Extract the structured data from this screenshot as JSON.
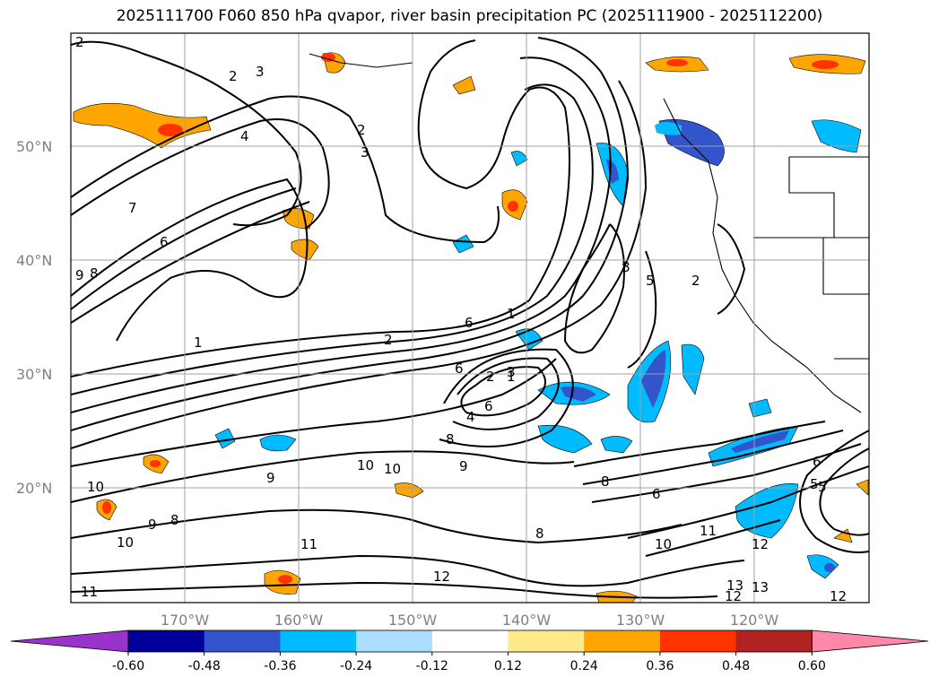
{
  "title": "2025111700 F060 850 hPa qvapor, river basin precipitation PC (2025111900 - 2025112200)",
  "map": {
    "lat_labels": [
      "50°N",
      "40°N",
      "30°N",
      "20°N"
    ],
    "lon_labels": [
      "170°W",
      "160°W",
      "150°W",
      "140°W",
      "130°W",
      "120°W"
    ],
    "contour_labels": [
      "2",
      "3",
      "2",
      "4",
      "3",
      "2",
      "7",
      "6",
      "9",
      "8",
      "1",
      "2",
      "6",
      "8",
      "6",
      "5",
      "2",
      "1",
      "1",
      "2",
      "6",
      "4",
      "8",
      "9",
      "8",
      "6",
      "5",
      "9",
      "10",
      "11",
      "10",
      "9",
      "8",
      "10",
      "11",
      "12",
      "10",
      "11",
      "12",
      "12",
      "13",
      "12",
      "13",
      "6",
      "5",
      "3",
      "8",
      "10"
    ],
    "grid_color": "#a0a0a0"
  },
  "colorbar": {
    "tick_labels": [
      "-0.60",
      "-0.48",
      "-0.36",
      "-0.24",
      "-0.12",
      "0.12",
      "0.24",
      "0.36",
      "0.48",
      "0.60"
    ],
    "colors": [
      "#9933cc",
      "#000099",
      "#3355cc",
      "#00bbff",
      "#aaddff",
      "#ffffff",
      "#ffe98a",
      "#ffa500",
      "#ff3300",
      "#b22222",
      "#ff88aa"
    ]
  }
}
